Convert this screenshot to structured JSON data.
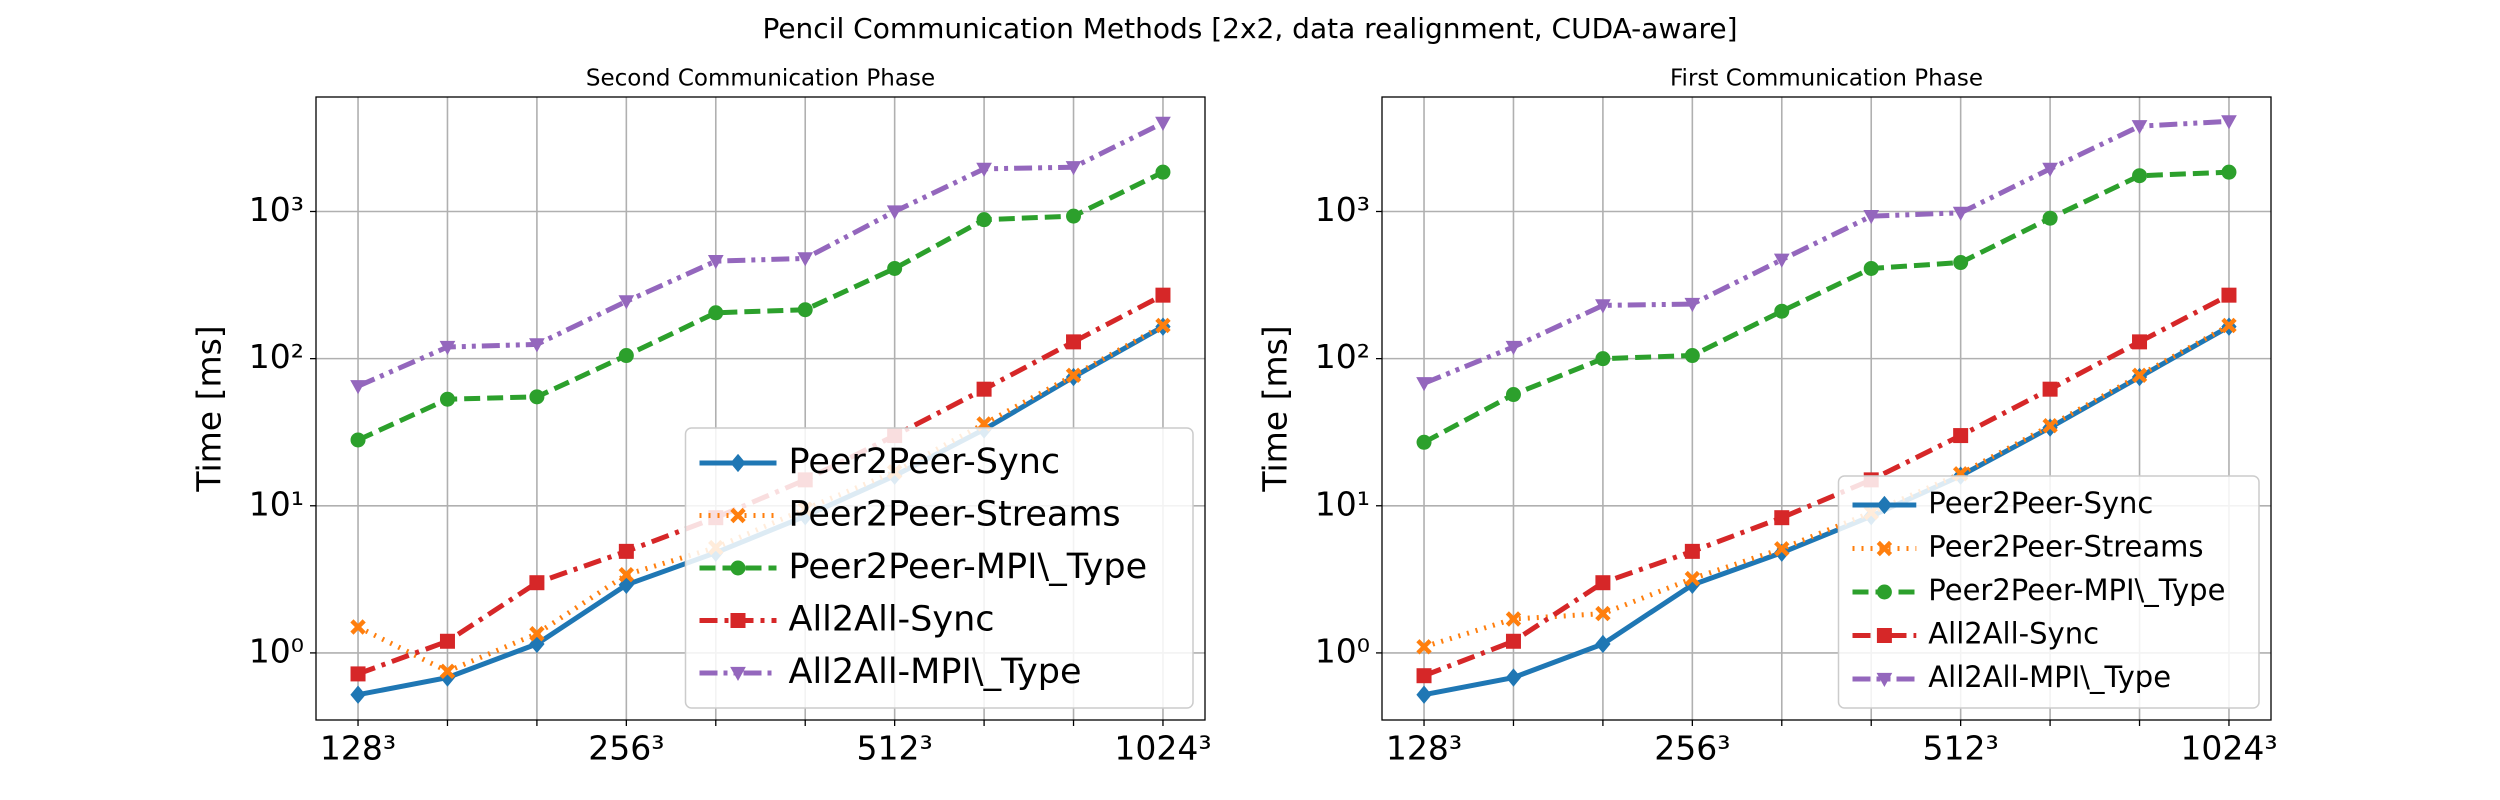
{
  "title": "Pencil Communication Methods [2x2, data realignment, CUDA-aware]",
  "chart_data": [
    {
      "type": "line",
      "title": "Second Communication Phase",
      "ylabel": "Time [ms]",
      "categories": [
        "128³",
        null,
        null,
        "256³",
        null,
        null,
        "512³",
        null,
        null,
        "1024³"
      ],
      "ylim": [
        0.35,
        6000
      ],
      "log_y": true,
      "grid": true,
      "legend": "lower right",
      "yticks": [
        {
          "value": 1,
          "label": "10⁰"
        },
        {
          "value": 10,
          "label": "10¹"
        },
        {
          "value": 100,
          "label": "10²"
        },
        {
          "value": 1000,
          "label": "10³"
        }
      ],
      "series": [
        {
          "name": "Peer2Peer-Sync",
          "color": "#1f77b4",
          "marker": "diamond",
          "linestyle": "solid",
          "values": [
            0.52,
            0.68,
            1.15,
            2.9,
            4.8,
            8.5,
            16,
            33,
            75,
            165
          ]
        },
        {
          "name": "Peer2Peer-Streams",
          "color": "#ff7f0e",
          "marker": "x",
          "linestyle": "dotted",
          "values": [
            1.5,
            0.75,
            1.35,
            3.4,
            5.2,
            9.5,
            17,
            36,
            77,
            168
          ]
        },
        {
          "name": "Peer2Peer-MPI\\_Type",
          "color": "#2ca02c",
          "marker": "circle",
          "linestyle": "dashed",
          "values": [
            28,
            53,
            55,
            105,
            205,
            215,
            410,
            880,
            930,
            1850
          ]
        },
        {
          "name": "All2All-Sync",
          "color": "#d62728",
          "marker": "square",
          "linestyle": "dashdot",
          "values": [
            0.72,
            1.2,
            3.0,
            4.9,
            8.3,
            15,
            30,
            62,
            130,
            270
          ]
        },
        {
          "name": "All2All-MPI\\_Type",
          "color": "#9467bd",
          "marker": "triangle-down",
          "linestyle": "dashdotdot",
          "values": [
            65,
            120,
            125,
            245,
            460,
            480,
            1000,
            1950,
            2000,
            4000
          ]
        }
      ]
    },
    {
      "type": "line",
      "title": "First Communication Phase",
      "ylabel": "Time [ms]",
      "categories": [
        "128³",
        null,
        null,
        "256³",
        null,
        null,
        "512³",
        null,
        null,
        "1024³"
      ],
      "ylim": [
        0.35,
        6000
      ],
      "log_y": true,
      "grid": true,
      "legend": "lower right",
      "yticks": [
        {
          "value": 1,
          "label": "10⁰"
        },
        {
          "value": 10,
          "label": "10¹"
        },
        {
          "value": 100,
          "label": "10²"
        },
        {
          "value": 1000,
          "label": "10³"
        }
      ],
      "series": [
        {
          "name": "Peer2Peer-Sync",
          "color": "#1f77b4",
          "marker": "diamond",
          "linestyle": "solid",
          "values": [
            0.52,
            0.68,
            1.15,
            2.9,
            4.8,
            8.5,
            16,
            34,
            75,
            165
          ]
        },
        {
          "name": "Peer2Peer-Streams",
          "color": "#ff7f0e",
          "marker": "x",
          "linestyle": "dotted",
          "values": [
            1.1,
            1.7,
            1.85,
            3.2,
            5.1,
            9,
            16.5,
            35,
            77,
            168
          ]
        },
        {
          "name": "Peer2Peer-MPI\\_Type",
          "color": "#2ca02c",
          "marker": "circle",
          "linestyle": "dashed",
          "values": [
            27,
            57,
            100,
            105,
            210,
            410,
            450,
            900,
            1750,
            1850
          ]
        },
        {
          "name": "All2All-Sync",
          "color": "#d62728",
          "marker": "square",
          "linestyle": "dashdot",
          "values": [
            0.7,
            1.2,
            3.0,
            4.9,
            8.3,
            15,
            30,
            62,
            130,
            270
          ]
        },
        {
          "name": "All2All-MPI\\_Type",
          "color": "#9467bd",
          "marker": "triangle-down",
          "linestyle": "dashdotdot",
          "values": [
            68,
            120,
            230,
            235,
            470,
            930,
            980,
            1950,
            3800,
            4100
          ]
        }
      ]
    }
  ]
}
